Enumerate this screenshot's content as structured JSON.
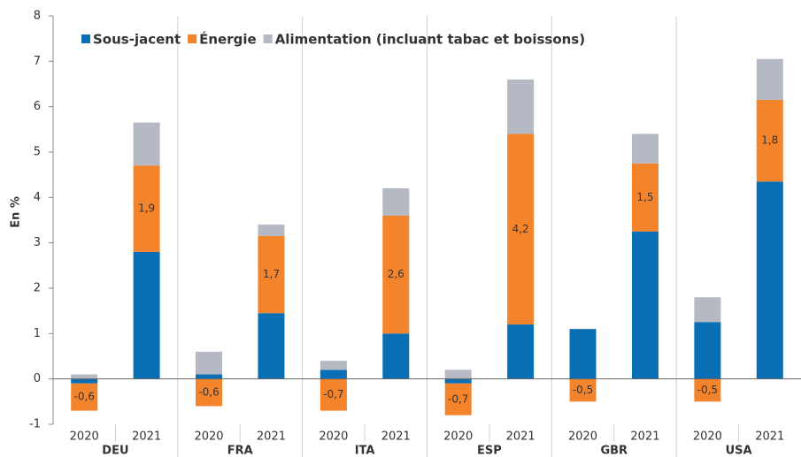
{
  "chart_data": {
    "type": "stacked-bar",
    "y_label": "En %",
    "categories": [
      "2020",
      "2021",
      "2020",
      "2021",
      "2020",
      "2021",
      "2020",
      "2021",
      "2020",
      "2021",
      "2020",
      "2021"
    ],
    "groups": [
      "DEU",
      "FRA",
      "ITA",
      "ESP",
      "GBR",
      "USA"
    ],
    "series": [
      {
        "name": "Sous-jacent",
        "color": "#0a6eb4",
        "values": [
          -0.1,
          2.8,
          0.1,
          1.45,
          0.2,
          1.0,
          -0.1,
          1.2,
          1.1,
          3.25,
          1.25,
          4.35
        ]
      },
      {
        "name": "Énergie",
        "color": "#f4842b",
        "values": [
          -0.6,
          1.9,
          -0.6,
          1.7,
          -0.7,
          2.6,
          -0.7,
          4.2,
          -0.5,
          1.5,
          -0.5,
          1.8
        ],
        "value_labels": [
          "-0,6",
          "1,9",
          "-0,6",
          "1,7",
          "-0,7",
          "2,6",
          "-0,7",
          "4,2",
          "-0,5",
          "1,5",
          "-0,5",
          "1,8"
        ]
      },
      {
        "name": "Alimentation (incluant tabac et boissons)",
        "color": "#b4b9c3",
        "values": [
          0.1,
          0.95,
          0.5,
          0.25,
          0.2,
          0.6,
          0.2,
          1.2,
          0,
          0.65,
          0.55,
          0.9
        ]
      }
    ],
    "ylim": [
      -1,
      8
    ],
    "yticks": [
      -1,
      0,
      1,
      2,
      3,
      4,
      5,
      6,
      7,
      8
    ],
    "legend": "top-left"
  }
}
